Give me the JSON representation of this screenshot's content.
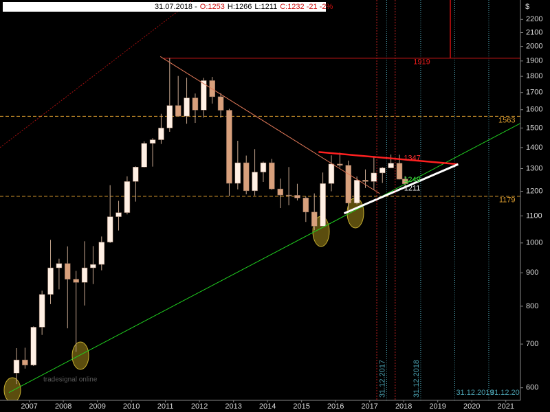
{
  "chart_data": {
    "type": "candlestick",
    "header": [
      {
        "text": "31.07.2018 -",
        "color": "#000000"
      },
      {
        "text": "O:1253",
        "color": "#d01010"
      },
      {
        "text": "H:1266",
        "color": "#000000"
      },
      {
        "text": "L:1211",
        "color": "#000000"
      },
      {
        "text": "C:1232 -21 -2%",
        "color": "#d01010"
      }
    ],
    "currency": "$",
    "watermark": "tradesignal online",
    "log_y": true,
    "xlim": [
      2006.64,
      2021.93
    ],
    "ylim": [
      574,
      2356
    ],
    "xticks": [
      {
        "value": 2007.5,
        "label": "2007"
      },
      {
        "value": 2008.5,
        "label": "2008"
      },
      {
        "value": 2009.5,
        "label": "2009"
      },
      {
        "value": 2010.5,
        "label": "2010"
      },
      {
        "value": 2011.5,
        "label": "2011"
      },
      {
        "value": 2012.5,
        "label": "2012"
      },
      {
        "value": 2013.5,
        "label": "2013"
      },
      {
        "value": 2014.5,
        "label": "2014"
      },
      {
        "value": 2015.5,
        "label": "2015"
      },
      {
        "value": 2016.5,
        "label": "2016"
      },
      {
        "value": 2017.5,
        "label": "2017"
      },
      {
        "value": 2018.5,
        "label": "2018"
      },
      {
        "value": 2019.5,
        "label": "2019"
      },
      {
        "value": 2020.5,
        "label": "2020"
      },
      {
        "value": 2021.5,
        "label": "2021"
      }
    ],
    "yticks": [
      600,
      700,
      800,
      900,
      1000,
      1100,
      1200,
      1300,
      1400,
      1500,
      1600,
      1700,
      1800,
      1900,
      2000,
      2100,
      2200
    ],
    "up_color": "#fff0e4",
    "down_color": "#d8a07c",
    "x": [
      2007.125,
      2007.375,
      2007.625,
      2007.875,
      2008.125,
      2008.375,
      2008.625,
      2008.875,
      2009.125,
      2009.375,
      2009.625,
      2009.875,
      2010.125,
      2010.375,
      2010.625,
      2010.875,
      2011.125,
      2011.375,
      2011.625,
      2011.875,
      2012.125,
      2012.375,
      2012.625,
      2012.875,
      2013.125,
      2013.375,
      2013.625,
      2013.875,
      2014.125,
      2014.375,
      2014.625,
      2014.875,
      2015.125,
      2015.375,
      2015.625,
      2015.875,
      2016.125,
      2016.375,
      2016.625,
      2016.875,
      2017.125,
      2017.375,
      2017.625,
      2017.875,
      2018.125,
      2018.375,
      2018.54
    ],
    "open": [
      632,
      662,
      650,
      743,
      834,
      916,
      930,
      880,
      870,
      916,
      927,
      1003,
      1097,
      1113,
      1242,
      1307,
      1421,
      1439,
      1500,
      1624,
      1564,
      1668,
      1598,
      1773,
      1675,
      1597,
      1234,
      1327,
      1202,
      1284,
      1327,
      1210,
      1184,
      1183,
      1172,
      1115,
      1061,
      1233,
      1321,
      1315,
      1151,
      1248,
      1242,
      1280,
      1303,
      1325,
      1253
    ],
    "high": [
      690,
      691,
      745,
      845,
      1011,
      946,
      988,
      906,
      1006,
      989,
      1023,
      1226,
      1160,
      1265,
      1310,
      1431,
      1447,
      1577,
      1920,
      1802,
      1791,
      1694,
      1790,
      1796,
      1696,
      1605,
      1434,
      1361,
      1392,
      1332,
      1345,
      1255,
      1307,
      1232,
      1178,
      1191,
      1282,
      1362,
      1375,
      1337,
      1264,
      1296,
      1357,
      1307,
      1366,
      1365,
      1266
    ],
    "low": [
      608,
      642,
      648,
      723,
      806,
      849,
      740,
      681,
      802,
      865,
      908,
      1000,
      1045,
      1106,
      1157,
      1305,
      1309,
      1418,
      1480,
      1562,
      1523,
      1527,
      1556,
      1635,
      1555,
      1180,
      1208,
      1187,
      1182,
      1240,
      1206,
      1131,
      1142,
      1162,
      1077,
      1046,
      1061,
      1200,
      1305,
      1123,
      1146,
      1214,
      1205,
      1236,
      1303,
      1251,
      1211
    ],
    "close": [
      662,
      650,
      743,
      834,
      916,
      930,
      880,
      870,
      916,
      927,
      1003,
      1097,
      1113,
      1242,
      1307,
      1421,
      1439,
      1500,
      1624,
      1564,
      1668,
      1598,
      1773,
      1675,
      1597,
      1234,
      1327,
      1202,
      1284,
      1327,
      1210,
      1184,
      1183,
      1172,
      1115,
      1061,
      1233,
      1321,
      1315,
      1151,
      1248,
      1242,
      1280,
      1303,
      1325,
      1252,
      1232
    ],
    "levels": [
      {
        "value": 1919,
        "color": "#e01818",
        "dash": false,
        "from": 2011.45,
        "label_x": 2019.4
      },
      {
        "value": 1563,
        "color": "#e0a030",
        "dash": true,
        "from": 2006.64,
        "label_x": 2021.9
      },
      {
        "value": 1179,
        "color": "#e0a030",
        "dash": true,
        "from": 2006.64,
        "label_x": 2021.9
      }
    ],
    "price_labels": [
      {
        "value": 1347,
        "x": 2018.75,
        "color": "#ff3030"
      },
      {
        "value": 1249,
        "x": 2018.75,
        "color": "#40e040"
      },
      {
        "value": 1211,
        "x": 2018.75,
        "color": "#f0f0f0"
      }
    ],
    "trendlines": [
      {
        "color": "#a01010",
        "width": 1,
        "dash": true,
        "points": [
          [
            2006.64,
            1400
          ],
          [
            2012.3,
            2356
          ]
        ]
      },
      {
        "color": "#e07858",
        "width": 1,
        "dash": false,
        "points": [
          [
            2011.35,
            1930
          ],
          [
            2017.8,
            1190
          ]
        ]
      },
      {
        "color": "#20d020",
        "width": 1,
        "dash": false,
        "points": [
          [
            2006.9,
            590
          ],
          [
            2021.93,
            1525
          ]
        ]
      },
      {
        "color": "#ff2020",
        "width": 2.5,
        "dash": false,
        "points": [
          [
            2016.0,
            1378
          ],
          [
            2020.1,
            1320
          ]
        ]
      },
      {
        "color": "#ffffff",
        "width": 3,
        "dash": false,
        "points": [
          [
            2016.75,
            1110
          ],
          [
            2020.1,
            1320
          ]
        ]
      },
      {
        "color": "#d01010",
        "width": 1.5,
        "dash": false,
        "points": [
          [
            2019.87,
            2356
          ],
          [
            2019.87,
            1919
          ]
        ]
      },
      {
        "color": "#c02020",
        "width": 1,
        "dash": true,
        "points": [
          [
            2017.71,
            2356
          ],
          [
            2017.71,
            574
          ]
        ]
      },
      {
        "color": "#c02020",
        "width": 1,
        "dash": true,
        "points": [
          [
            2018.25,
            2356
          ],
          [
            2018.25,
            574
          ]
        ]
      }
    ],
    "date_markers": [
      {
        "label": "31.12.2017",
        "x": 2018.0,
        "rotate": true
      },
      {
        "label": "31.12.2018",
        "x": 2019.0,
        "rotate": true
      },
      {
        "label": "31.12.2019",
        "x": 2020.0,
        "rotate": false
      },
      {
        "label": "31.12.20",
        "x": 2021.0,
        "rotate": false
      }
    ]
  }
}
